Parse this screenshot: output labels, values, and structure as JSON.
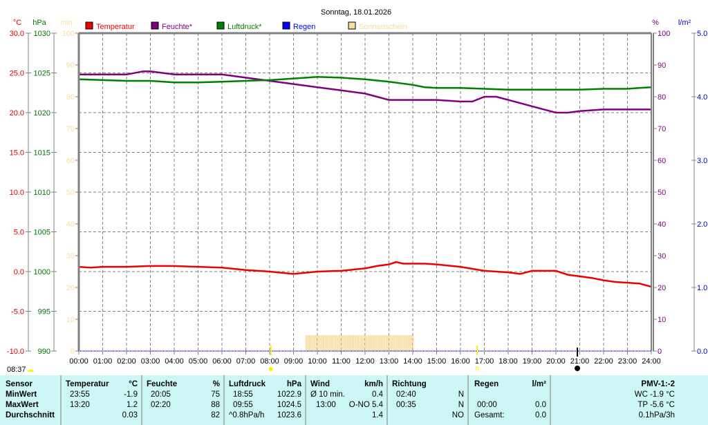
{
  "title": "Sonntag, 18.01.2026",
  "axes": {
    "temp": {
      "unit": "°C",
      "color": "#dd0000",
      "ticks": [
        "30.0",
        "25.0",
        "20.0",
        "15.0",
        "10.0",
        "5.0",
        "0.0",
        "-5.0",
        "-10.0"
      ]
    },
    "pressure": {
      "unit": "hPa",
      "color": "#007700",
      "ticks": [
        "1030",
        "1025",
        "1020",
        "1015",
        "1010",
        "1005",
        "1000",
        "995",
        "990"
      ]
    },
    "sun": {
      "unit": "min",
      "color": "#f8dca0",
      "ticks": [
        "100",
        "90",
        "80",
        "70",
        "60",
        "50",
        "40",
        "30",
        "20",
        "10",
        "0"
      ]
    },
    "humidity": {
      "unit": "%",
      "color": "#770077",
      "ticks": [
        "100",
        "90",
        "80",
        "70",
        "60",
        "50",
        "40",
        "30",
        "20",
        "10",
        "0"
      ]
    },
    "rain": {
      "unit": "l/m²",
      "color": "#0000cc",
      "ticks": [
        "5.0",
        "4.0",
        "3.0",
        "2.0",
        "1.0",
        "0.0"
      ]
    },
    "x_ticks": [
      "00:00",
      "01:00",
      "02:00",
      "03:00",
      "04:00",
      "05:00",
      "06:00",
      "07:00",
      "08:00",
      "09:00",
      "10:00",
      "11:00",
      "12:00",
      "13:00",
      "14:00",
      "15:00",
      "16:00",
      "17:00",
      "18:00",
      "19:00",
      "20:00",
      "21:00",
      "22:00",
      "23:00",
      "24:00"
    ]
  },
  "legend": [
    {
      "label": "Temperatur",
      "color": "#ee0000"
    },
    {
      "label": "Feuchte*",
      "color": "#800080"
    },
    {
      "label": "Luftdruck*",
      "color": "#008000"
    },
    {
      "label": "Regen",
      "color": "#0000ff"
    },
    {
      "label": "Sonnenschein",
      "color": "#f8dca0"
    }
  ],
  "markers": {
    "sunrise": "08:37",
    "sunrise_x_hour": 8.05,
    "sunset_x_hour": 16.7,
    "now_x_hour": 20.9
  },
  "chart_data": {
    "type": "line",
    "title": "Sonntag, 18.01.2026",
    "xlabel": "",
    "x_range": [
      0,
      24
    ],
    "grid": true,
    "legend_position": "top",
    "series": [
      {
        "name": "Temperatur",
        "unit": "°C",
        "axis": [
          -10,
          30
        ],
        "x": [
          0,
          0.5,
          1,
          2,
          3,
          4,
          5,
          6,
          7,
          8,
          9,
          10,
          11,
          12,
          12.5,
          13,
          13.3,
          13.6,
          14,
          14.5,
          15,
          16,
          17,
          18,
          18.5,
          19,
          19.5,
          20,
          20.5,
          21,
          21.5,
          22,
          22.5,
          23,
          23.5,
          24
        ],
        "y": [
          0.6,
          0.5,
          0.6,
          0.6,
          0.7,
          0.7,
          0.6,
          0.5,
          0.2,
          0.0,
          -0.3,
          0.0,
          0.1,
          0.4,
          0.7,
          0.9,
          1.2,
          1.0,
          1.0,
          1.0,
          0.9,
          0.6,
          0.1,
          -0.1,
          -0.3,
          0.1,
          0.1,
          0.1,
          -0.4,
          -0.6,
          -0.8,
          -1.1,
          -1.3,
          -1.4,
          -1.5,
          -1.9
        ]
      },
      {
        "name": "Feuchte*",
        "unit": "%",
        "axis": [
          0,
          100
        ],
        "x": [
          0,
          1,
          2,
          2.7,
          3,
          3.5,
          4,
          5,
          6,
          7,
          8,
          9,
          10,
          11,
          12,
          13,
          14,
          15,
          16,
          16.5,
          17,
          17.5,
          18,
          18.5,
          19,
          19.5,
          20,
          20.5,
          21,
          22,
          23,
          24
        ],
        "y": [
          87,
          87,
          87,
          88,
          88,
          87.5,
          87,
          87,
          87,
          86,
          85,
          84,
          83,
          82,
          81,
          79,
          79,
          79,
          78.5,
          78.5,
          80,
          80,
          79,
          78,
          77,
          76,
          75,
          75,
          75.5,
          76,
          76,
          76
        ]
      },
      {
        "name": "Luftdruck*",
        "unit": "hPa",
        "axis": [
          990,
          1030
        ],
        "x": [
          0,
          1,
          2,
          3,
          4,
          5,
          6,
          7,
          8,
          9,
          10,
          11,
          11.5,
          12,
          13,
          14,
          14.5,
          15,
          16,
          17,
          18,
          19,
          20,
          21,
          22,
          23,
          23.5,
          24
        ],
        "y": [
          1024.2,
          1024.1,
          1024.0,
          1024.0,
          1023.8,
          1023.8,
          1023.9,
          1024.0,
          1024.1,
          1024.3,
          1024.5,
          1024.4,
          1024.3,
          1024.2,
          1023.9,
          1023.5,
          1023.2,
          1023.1,
          1023.1,
          1023.0,
          1022.9,
          1022.9,
          1022.9,
          1022.9,
          1023.0,
          1023.0,
          1023.1,
          1023.2
        ]
      },
      {
        "name": "Regen",
        "unit": "l/m²",
        "axis": [
          0,
          5
        ],
        "x": [
          0,
          24
        ],
        "y": [
          0,
          0
        ]
      },
      {
        "name": "Sonnenschein",
        "unit": "min",
        "axis": [
          0,
          100
        ],
        "x_start": 9.5,
        "x_end": 14.05,
        "y": 5
      }
    ]
  },
  "stats": {
    "sensor": {
      "header": "Sensor",
      "rows": [
        "MinWert",
        "MaxWert",
        "Durchschnitt"
      ]
    },
    "temperature": {
      "header": "Temperatur",
      "unit": "°C",
      "min_time": "23:55",
      "min": "-1.9",
      "max_time": "13:20",
      "max": "1.2",
      "avg": "0.03"
    },
    "humidity": {
      "header": "Feuchte",
      "unit": "%",
      "min_time": "20:05",
      "min": "75",
      "max_time": "02:20",
      "max": "88",
      "avg": "82"
    },
    "pressure": {
      "header": "Luftdruck",
      "unit": "hPa",
      "min_time": "18:55",
      "min": "1022.9",
      "max_time": "09:55",
      "max": "1024.5",
      "trend": "^0.8hPa/h",
      "avg": "1023.6"
    },
    "wind": {
      "header": "Wind",
      "unit": "km/h",
      "avg_label": "Ø 10 min.",
      "avg10": "0.4",
      "max_time": "13:00",
      "max": "O-NO 5.4",
      "avg": "1.4"
    },
    "direction": {
      "header": "Richtung",
      "t1": "02:40",
      "d1": "N",
      "t2": "00:35",
      "d2": "N",
      "d3": "NO"
    },
    "rain": {
      "header": "Regen",
      "unit": "l/m²",
      "time": "00:00",
      "value": "0.0",
      "total_label": "Gesamt:",
      "total": "0.0"
    },
    "extra": {
      "pmv": "PMV-1:-2",
      "wc": "WC -1.9 °C",
      "tp": "TP -5.6 °C",
      "trend3h": "0.1hPa/3h"
    }
  }
}
